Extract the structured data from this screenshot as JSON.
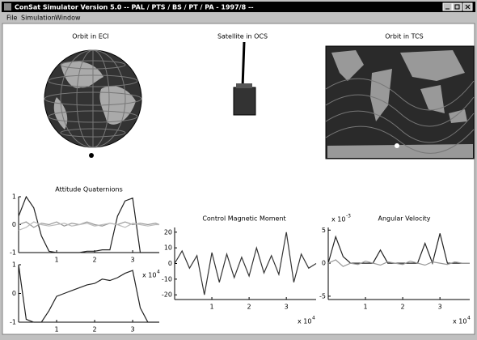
{
  "window": {
    "title": "ConSat Simulator Version 5.0 -- PAL / PTS / BS / PT / PA - 1997/8 --"
  },
  "menu": [
    "File",
    "Simulation",
    "Window"
  ],
  "views": [
    "Orbit in ECI",
    "Satellite in OCS",
    "Orbit in TCS"
  ],
  "chart_data": [
    {
      "type": "line",
      "title": "Attitude Quaternions",
      "x": [
        0,
        2000,
        4000,
        6000,
        8000,
        10000,
        12000,
        14000,
        16000,
        18000,
        20000,
        22000,
        24000,
        26000,
        28000,
        30000,
        32000,
        34000,
        36000,
        37000
      ],
      "xlim": [
        0,
        37000
      ],
      "ylim": [
        -1,
        1
      ],
      "xticks": [
        {
          "value": 10000,
          "label": "1"
        },
        {
          "value": 20000,
          "label": "2"
        },
        {
          "value": 30000,
          "label": "3"
        }
      ],
      "yticks": [
        -1,
        0,
        1
      ],
      "series": [
        {
          "color": "#222222",
          "values": [
            0.3,
            1,
            0.6,
            -0.4,
            -0.95,
            -1,
            -1,
            -1,
            -1,
            -0.95,
            -0.95,
            -0.9,
            -0.9,
            0.3,
            0.85,
            0.95,
            -1,
            -1,
            -1,
            -1
          ]
        },
        {
          "color": "#999999",
          "values": [
            0,
            0.1,
            -0.1,
            0.05,
            0,
            0.1,
            -0.05,
            0.05,
            0,
            0.1,
            0,
            -0.05,
            0.05,
            0,
            0.1,
            0,
            0.05,
            0,
            0.05,
            0
          ]
        },
        {
          "color": "#bbbbbb",
          "values": [
            -0.2,
            -0.1,
            0.1,
            0,
            -0.05,
            0,
            0.05,
            -0.05,
            0,
            0.05,
            -0.05,
            0,
            0.05,
            0,
            -0.1,
            0.05,
            0,
            -0.05,
            0,
            0
          ]
        }
      ]
    },
    {
      "type": "line",
      "x": [
        0,
        2000,
        4000,
        6000,
        8000,
        10000,
        12000,
        14000,
        16000,
        18000,
        20000,
        22000,
        24000,
        26000,
        28000,
        30000,
        32000,
        34000,
        36000,
        37000
      ],
      "xlim": [
        0,
        37000
      ],
      "ylim": [
        -1,
        1
      ],
      "xticks": [
        {
          "value": 10000,
          "label": "1"
        },
        {
          "value": 20000,
          "label": "2"
        },
        {
          "value": 30000,
          "label": "3"
        }
      ],
      "yticks": [
        -1,
        0,
        1
      ],
      "x_exponent": {
        "base": "x 10",
        "power": "4"
      },
      "series": [
        {
          "color": "#222222",
          "values": [
            1,
            -0.9,
            -1,
            -1,
            -0.6,
            -0.1,
            0,
            0.1,
            0.2,
            0.3,
            0.35,
            0.5,
            0.45,
            0.55,
            0.7,
            0.8,
            -0.5,
            -1,
            -1,
            -1
          ]
        }
      ]
    },
    {
      "type": "line",
      "title": "Control Magnetic Moment",
      "x": [
        0,
        2000,
        4000,
        6000,
        8000,
        10000,
        12000,
        14000,
        16000,
        18000,
        20000,
        22000,
        24000,
        26000,
        28000,
        30000,
        32000,
        34000,
        36000,
        38000
      ],
      "xlim": [
        0,
        38000
      ],
      "ylim": [
        -23,
        23
      ],
      "xticks": [
        {
          "value": 10000,
          "label": "1"
        },
        {
          "value": 20000,
          "label": "2"
        },
        {
          "value": 30000,
          "label": "3"
        }
      ],
      "yticks": [
        -20,
        -10,
        0,
        10,
        20
      ],
      "x_exponent": {
        "base": "x 10",
        "power": "4"
      },
      "series": [
        {
          "color": "#333333",
          "values": [
            0,
            8,
            -3,
            5,
            -20,
            7,
            -12,
            6,
            -9,
            4,
            -8,
            10,
            -6,
            5,
            -7,
            20,
            -12,
            6,
            -3,
            0
          ]
        }
      ]
    },
    {
      "type": "line",
      "title": "Angular Velocity",
      "x": [
        0,
        2000,
        4000,
        6000,
        8000,
        10000,
        12000,
        14000,
        16000,
        18000,
        20000,
        22000,
        24000,
        26000,
        28000,
        30000,
        32000,
        34000,
        36000,
        38000
      ],
      "xlim": [
        0,
        38000
      ],
      "ylim": [
        -5.5,
        5.4
      ],
      "xticks": [
        {
          "value": 10000,
          "label": "1"
        },
        {
          "value": 20000,
          "label": "2"
        },
        {
          "value": 30000,
          "label": "3"
        }
      ],
      "yticks": [
        -5,
        0,
        5
      ],
      "x_exponent": {
        "base": "x 10",
        "power": "4"
      },
      "y_exponent": {
        "base": "x 10",
        "power": "-3"
      },
      "series": [
        {
          "color": "#222222",
          "values": [
            0,
            4,
            1,
            0,
            0,
            0,
            0,
            2,
            0,
            0,
            0,
            0,
            0,
            3,
            0,
            4.5,
            0,
            0,
            0,
            0
          ]
        },
        {
          "color": "#999999",
          "values": [
            0,
            0.5,
            -0.5,
            0,
            -0.2,
            0.3,
            0,
            -0.3,
            0.2,
            0,
            -0.2,
            0.3,
            0,
            -0.3,
            0.2,
            0,
            -0.2,
            0.2,
            0,
            0
          ]
        }
      ]
    }
  ]
}
